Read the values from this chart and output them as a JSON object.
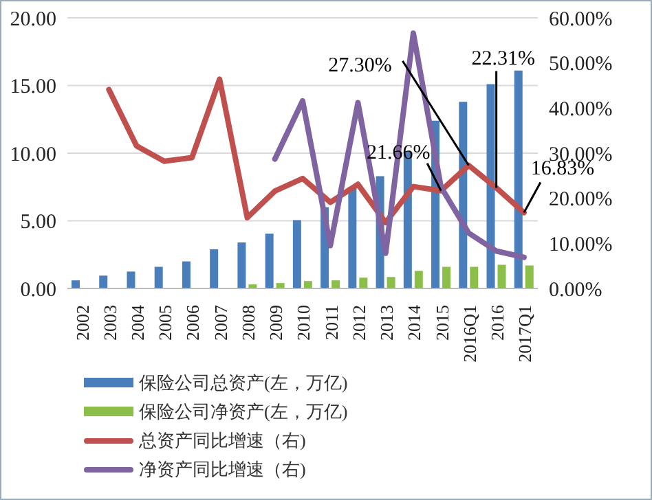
{
  "chart_data": {
    "type": "bar",
    "categories": [
      "2002",
      "2003",
      "2004",
      "2005",
      "2006",
      "2007",
      "2008",
      "2009",
      "2010",
      "2011",
      "2012",
      "2013",
      "2014",
      "2015",
      "2016Q1",
      "2016",
      "2017Q1"
    ],
    "series": [
      {
        "name": "保险公司总资产(左，万亿)",
        "color": "#4a7ebb",
        "values": [
          0.6,
          0.95,
          1.25,
          1.6,
          2.0,
          2.9,
          3.4,
          4.05,
          5.05,
          6.0,
          7.5,
          8.3,
          10.1,
          12.4,
          13.8,
          15.1,
          16.1
        ]
      },
      {
        "name": "保险公司净资产(左，万亿)",
        "color": "#8cbf4a",
        "values": [
          null,
          null,
          null,
          null,
          null,
          null,
          0.3,
          0.4,
          0.55,
          0.6,
          0.8,
          0.85,
          1.3,
          1.6,
          1.6,
          1.75,
          1.7
        ]
      },
      {
        "name": "总资产同比增速（右)",
        "type": "line",
        "axis": "y2",
        "color": "#c0504d",
        "values": [
          null,
          44.1,
          31.6,
          28.2,
          29.0,
          46.4,
          15.7,
          21.6,
          24.4,
          19.1,
          23.1,
          14.6,
          22.6,
          21.66,
          27.3,
          22.31,
          16.83
        ],
        "value_labels": [
          null,
          null,
          null,
          null,
          null,
          null,
          null,
          null,
          null,
          null,
          null,
          null,
          null,
          "21.66%",
          "27.30%",
          "22.31%",
          "16.83%"
        ]
      },
      {
        "name": "净资产同比增速（右)",
        "type": "line",
        "axis": "y2",
        "color": "#8064a2",
        "values": [
          null,
          null,
          null,
          null,
          null,
          null,
          null,
          28.7,
          41.6,
          9.5,
          41.2,
          7.8,
          56.6,
          22.5,
          12.3,
          8.3,
          6.9
        ]
      }
    ],
    "ylim": [
      0,
      20
    ],
    "yticks": [
      {
        "value": 0,
        "label": "0.00"
      },
      {
        "value": 5,
        "label": "5.00"
      },
      {
        "value": 10,
        "label": "10.00"
      },
      {
        "value": 15,
        "label": "15.00"
      },
      {
        "value": 20,
        "label": "20.00"
      }
    ],
    "y2lim": [
      0,
      60
    ],
    "y2ticks": [
      {
        "value": 0,
        "label": "0.00%"
      },
      {
        "value": 10,
        "label": "10.00%"
      },
      {
        "value": 20,
        "label": "20.00%"
      },
      {
        "value": 30,
        "label": "30.00%"
      },
      {
        "value": 40,
        "label": "40.00%"
      },
      {
        "value": 50,
        "label": "50.00%"
      },
      {
        "value": 60,
        "label": "60.00%"
      }
    ],
    "grid": "y",
    "legend": "bottom",
    "marker": "none"
  }
}
